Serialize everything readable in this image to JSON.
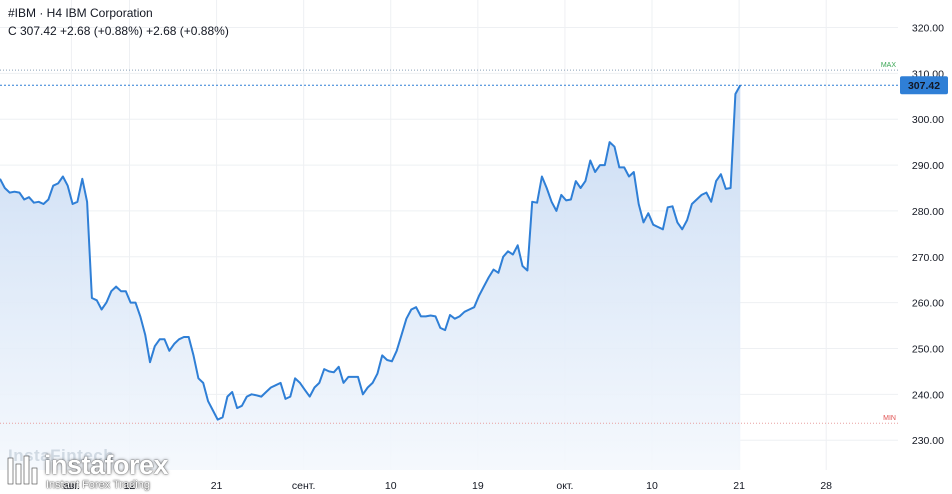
{
  "header": {
    "title": "#IBM · H4 IBM Corporation",
    "quote": "C 307.42 +2.68 (+0.88%) +2.68 (+0.88%)"
  },
  "watermark": {
    "ghost_text": "InstaFintech",
    "brand": "instaforex",
    "tagline": "Instant Forex Trading"
  },
  "colors": {
    "line": "#2f7fd6",
    "area_top": "#c7daf3",
    "area_bottom": "#f4f8fd",
    "grid": "#eef0f3",
    "last_price_bg": "#2f7fd6",
    "max_color": "#3aa655",
    "min_color": "#e05050"
  },
  "chart_data": {
    "type": "area",
    "symbol": "#IBM",
    "timeframe": "H4",
    "y_ticks": [
      230,
      240,
      250,
      260,
      270,
      280,
      290,
      300,
      310,
      320
    ],
    "y_tick_labels": [
      "230.00",
      "240.00",
      "250.00",
      "260.00",
      "270.00",
      "280.00",
      "290.00",
      "300.00",
      "310.00",
      "320.00"
    ],
    "ylim": [
      223.5,
      326
    ],
    "x_labels": [
      {
        "label": "авг.",
        "pos": 16
      },
      {
        "label": "12",
        "pos": 28
      },
      {
        "label": "21",
        "pos": 46
      },
      {
        "label": "сент.",
        "pos": 64
      },
      {
        "label": "10",
        "pos": 82
      },
      {
        "label": "19",
        "pos": 100
      },
      {
        "label": "окт.",
        "pos": 118
      },
      {
        "label": "10",
        "pos": 136
      },
      {
        "label": "21",
        "pos": 154
      },
      {
        "label": "28",
        "pos": 172
      }
    ],
    "xlim": [
      0,
      198
    ],
    "last_price": 307.42,
    "last_price_label": "307.42",
    "max": {
      "label": "MAX",
      "value": 310.7
    },
    "min": {
      "label": "MIN",
      "value": 233.7
    },
    "values": [
      287,
      285,
      284,
      284.2,
      284,
      282.5,
      283,
      281.8,
      282,
      281.5,
      282.5,
      285.5,
      286,
      287.5,
      285.5,
      281.5,
      282,
      287,
      282,
      261,
      260.5,
      258.5,
      260,
      262.5,
      263.5,
      262.5,
      262.5,
      260,
      260,
      257,
      253,
      247,
      250.5,
      252,
      252,
      249.5,
      251,
      252,
      252.5,
      252.5,
      248.5,
      243.5,
      242.5,
      238.5,
      236.5,
      234.5,
      235,
      239.5,
      240.5,
      237,
      237.5,
      239.5,
      240,
      239.8,
      239.5,
      240.5,
      241.5,
      242,
      242.5,
      239,
      239.5,
      243.5,
      242.5,
      241,
      239.5,
      241.5,
      242.5,
      245.5,
      245,
      244.8,
      246,
      242.5,
      243.8,
      243.8,
      243.8,
      240,
      241.5,
      242.5,
      244.5,
      248.5,
      247.5,
      247.2,
      249.5,
      253,
      256.5,
      258.5,
      259,
      257,
      257,
      257.2,
      257,
      254.5,
      254,
      257.3,
      256.5,
      257,
      258,
      258.5,
      259,
      261.5,
      263.5,
      265.5,
      267.2,
      266.5,
      270,
      271.2,
      270.5,
      272.5,
      268,
      267,
      282,
      281.8,
      287.5,
      285,
      282,
      280,
      283.5,
      282.3,
      282.5,
      286.5,
      285,
      286.5,
      291,
      288.5,
      290,
      290,
      295,
      294,
      289.5,
      289.5,
      287.5,
      288.5,
      281.5,
      277.5,
      279.5,
      277,
      276.5,
      276,
      280.8,
      281,
      277.5,
      276,
      278,
      281.5,
      282.5,
      283.5,
      284,
      282,
      286.5,
      288,
      284.8,
      285,
      305.5,
      307.42
    ]
  }
}
